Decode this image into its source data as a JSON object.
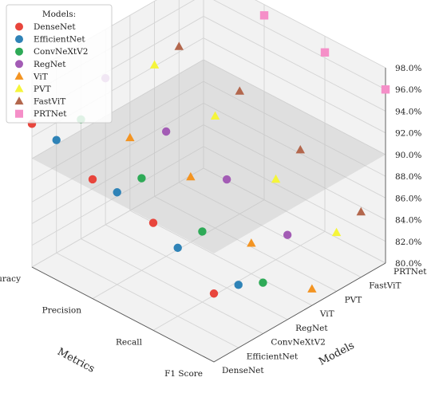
{
  "chart_data": {
    "type": "scatter",
    "title": "",
    "legend_title": "Models:",
    "legend_position": "top-left",
    "xlabel": "Metrics",
    "ylabel": "Models",
    "zlim": [
      80,
      98
    ],
    "grid": true,
    "metrics": [
      "Accuracy",
      "Precision",
      "Recall",
      "F1 Score"
    ],
    "models": [
      "DenseNet",
      "EfficientNet",
      "ConvNeXtV2",
      "RegNet",
      "ViT",
      "PVT",
      "FastViT",
      "PRTNet"
    ],
    "ztick_labels": [
      "80.0%",
      "82.0%",
      "84.0%",
      "86.0%",
      "88.0%",
      "90.0%",
      "92.0%",
      "94.0%",
      "96.0%",
      "98.0%"
    ],
    "reference_plane": 90.0,
    "series": [
      {
        "name": "DenseNet",
        "marker": "circle",
        "color": "#e8453c",
        "values": [
          93.2,
          91.0,
          89.9,
          86.3
        ]
      },
      {
        "name": "EfficientNet",
        "marker": "circle",
        "color": "#2f83b7",
        "values": [
          90.4,
          88.5,
          86.3,
          85.8
        ]
      },
      {
        "name": "ConvNeXtV2",
        "marker": "circle",
        "color": "#2eaa57",
        "values": [
          91.0,
          88.5,
          86.5,
          84.7
        ]
      },
      {
        "name": "RegNet",
        "marker": "circle",
        "color": "#a35cb5",
        "values": [
          93.5,
          91.5,
          90.0,
          87.8
        ]
      },
      {
        "name": "ViT",
        "marker": "triangle",
        "color": "#f39422",
        "values": [
          86.7,
          86.0,
          82.8,
          81.5
        ]
      },
      {
        "name": "PVT",
        "marker": "triangle",
        "color": "#f5f53a",
        "values": [
          92.1,
          90.3,
          87.4,
          85.4
        ]
      },
      {
        "name": "FastViT",
        "marker": "triangle",
        "color": "#b3674d",
        "values": [
          92.5,
          91.3,
          88.8,
          86.0
        ]
      },
      {
        "name": "PRTNet",
        "marker": "square",
        "color": "#f58fc8",
        "values": [
          97.5,
          97.0,
          96.5,
          96.0
        ]
      }
    ]
  }
}
